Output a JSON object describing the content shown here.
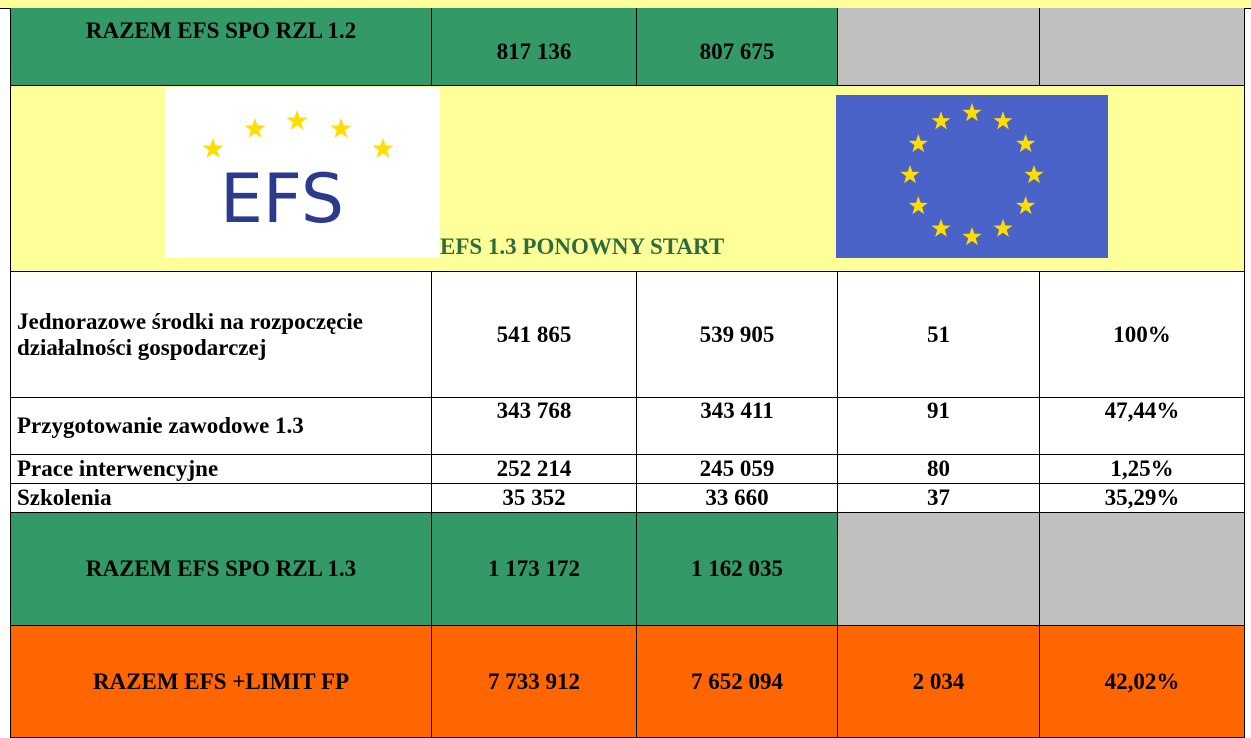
{
  "table": {
    "rows": [
      {
        "label": "RAZEM EFS SPO RZL 1.2",
        "cells": [
          "817 136",
          "807 675"
        ]
      },
      {
        "label": "Jednorazowe środki na rozpoczęcie działalności gospodarczej",
        "cells": [
          "541 865",
          "539 905",
          "51",
          "100%"
        ]
      },
      {
        "label": "Przygotowanie zawodowe 1.3",
        "cells": [
          "343 768",
          "343 411",
          "91",
          "47,44%"
        ]
      },
      {
        "label": "Prace interwencyjne",
        "cells": [
          "252 214",
          "245 059",
          "80",
          "1,25%"
        ]
      },
      {
        "label": "Szkolenia",
        "cells": [
          "35 352",
          "33 660",
          "37",
          "35,29%"
        ]
      },
      {
        "label": "RAZEM EFS SPO RZL 1.3",
        "cells": [
          "1 173 172",
          "1 162 035"
        ]
      },
      {
        "label": "RAZEM EFS +LIMIT FP",
        "cells": [
          "7 733 912",
          "7 652 094",
          "2 034",
          "42,02%"
        ]
      }
    ],
    "section_title": "EFS 1.3 PONOWNY START",
    "logo_text": "EFS"
  }
}
